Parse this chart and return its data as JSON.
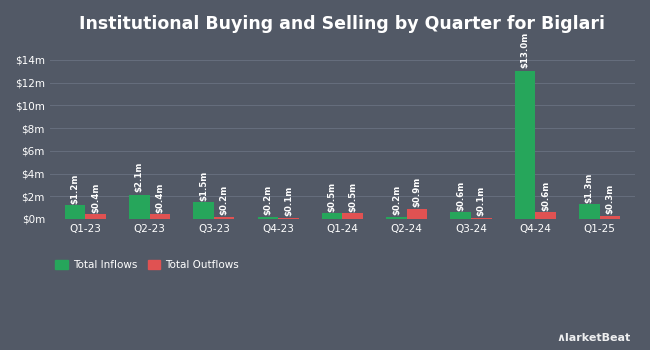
{
  "title": "Institutional Buying and Selling by Quarter for Biglari",
  "quarters": [
    "Q1-23",
    "Q2-23",
    "Q3-23",
    "Q4-23",
    "Q1-24",
    "Q2-24",
    "Q3-24",
    "Q4-24",
    "Q1-25"
  ],
  "inflows": [
    1.2,
    2.1,
    1.5,
    0.2,
    0.5,
    0.2,
    0.6,
    13.0,
    1.3
  ],
  "outflows": [
    0.4,
    0.4,
    0.2,
    0.1,
    0.5,
    0.9,
    0.1,
    0.6,
    0.3
  ],
  "inflow_labels": [
    "$1.2m",
    "$2.1m",
    "$1.5m",
    "$0.2m",
    "$0.5m",
    "$0.2m",
    "$0.6m",
    "$13.0m",
    "$1.3m"
  ],
  "outflow_labels": [
    "$0.4m",
    "$0.4m",
    "$0.2m",
    "$0.1m",
    "$0.5m",
    "$0.9m",
    "$0.1m",
    "$0.6m",
    "$0.3m"
  ],
  "inflow_color": "#26a65b",
  "outflow_color": "#e05252",
  "background_color": "#525966",
  "plot_bg_color": "#525966",
  "grid_color": "#666e7d",
  "text_color": "#ffffff",
  "bar_width": 0.32,
  "ylim": [
    0,
    15.5
  ],
  "yticks": [
    0,
    2,
    4,
    6,
    8,
    10,
    12,
    14
  ],
  "ytick_labels": [
    "$0m",
    "$2m",
    "$4m",
    "$6m",
    "$8m",
    "$10m",
    "$12m",
    "$14m"
  ],
  "legend_inflow": "Total Inflows",
  "legend_outflow": "Total Outflows",
  "title_fontsize": 12.5,
  "label_fontsize": 6.2,
  "tick_fontsize": 7.5,
  "legend_fontsize": 7.5
}
